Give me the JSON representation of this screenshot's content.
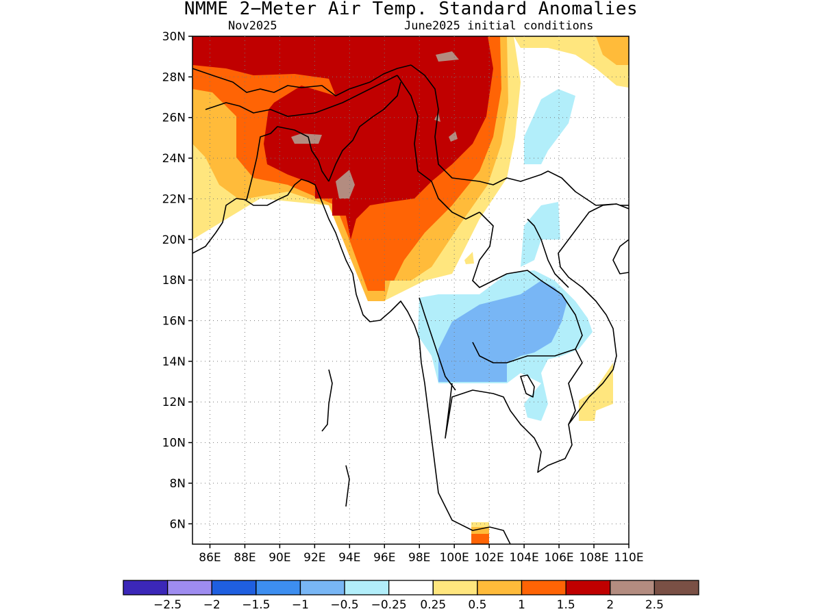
{
  "title": "NMME 2−Meter Air Temp. Standard Anomalies",
  "subtitle_left": "Nov2025",
  "subtitle_right": "June2025 initial conditions",
  "map": {
    "lon_range": [
      85,
      110
    ],
    "lat_range": [
      5,
      30
    ],
    "lat_ticks": [
      "30N",
      "28N",
      "26N",
      "24N",
      "22N",
      "20N",
      "18N",
      "16N",
      "14N",
      "12N",
      "10N",
      "8N",
      "6N"
    ],
    "lon_ticks": [
      "86E",
      "88E",
      "90E",
      "92E",
      "94E",
      "96E",
      "98E",
      "100E",
      "102E",
      "104E",
      "106E",
      "108E",
      "110E"
    ],
    "grid": "dotted",
    "coastlines": true,
    "borders": true
  },
  "colorbar": {
    "labels": [
      "−2.5",
      "−2",
      "−1.5",
      "−1",
      "−0.5",
      "−0.25",
      "0.25",
      "0.5",
      "1",
      "1.5",
      "2",
      "2.5"
    ],
    "colors": [
      "#3b27b8",
      "#9e8cf0",
      "#1f5fe0",
      "#3d8ef0",
      "#78b6f5",
      "#b2eefa",
      "#ffffff",
      "#ffe67e",
      "#ffbb3a",
      "#ff6405",
      "#c00000",
      "#b38c80",
      "#7a5045"
    ]
  },
  "colors": {
    "c_yellow": "#ffe67e",
    "c_orange": "#ffbb3a",
    "c_dorange": "#ff6405",
    "c_red": "#c00000",
    "c_brown": "#b38c80",
    "c_lblue": "#b2eefa",
    "c_mblue": "#78b6f5"
  }
}
